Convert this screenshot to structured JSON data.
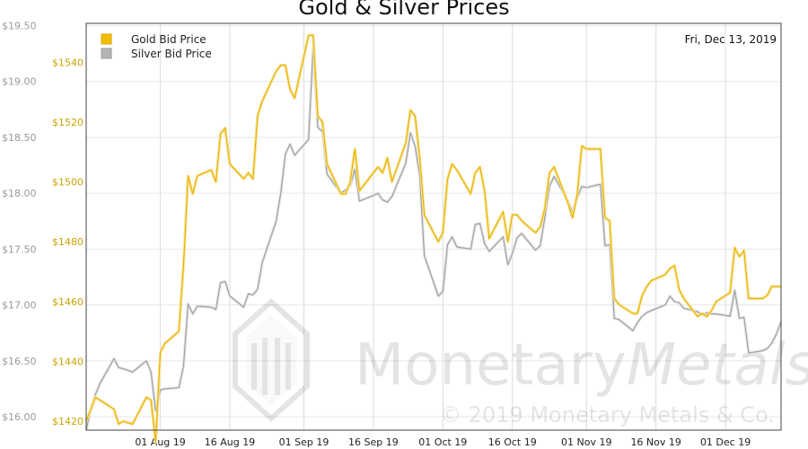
{
  "chart_data": {
    "type": "line",
    "title": "Gold & Silver Prices",
    "date_label": "Fri, Dec 13, 2019",
    "legend_position": "top-left",
    "grid": true,
    "colors": {
      "gold": "#f2bc00",
      "silver": "#b5b5b5"
    },
    "x_ticks": [
      "01 Aug 19",
      "16 Aug 19",
      "01 Sep 19",
      "16 Sep 19",
      "01 Oct 19",
      "16 Oct 19",
      "01 Nov 19",
      "16 Nov 19",
      "01 Dec 19"
    ],
    "y_left": {
      "ticks": [
        "$16.00",
        "$16.50",
        "$17.00",
        "$17.50",
        "$18.00",
        "$18.50",
        "$19.00",
        "$19.50"
      ],
      "range": [
        15.88,
        19.52
      ]
    },
    "y_right": {
      "ticks": [
        "$1420",
        "$1440",
        "$1460",
        "$1480",
        "$1500",
        "$1520",
        "$1540"
      ],
      "range": [
        1417,
        1553
      ]
    },
    "x_range": [
      "2019-07-16",
      "2019-12-13"
    ],
    "series": [
      {
        "name": "Gold Bid Price",
        "axis": "right",
        "points": [
          [
            "2019-07-16",
            1420
          ],
          [
            "2019-07-17",
            1424
          ],
          [
            "2019-07-18",
            1428
          ],
          [
            "2019-07-19",
            1427
          ],
          [
            "2019-07-22",
            1424
          ],
          [
            "2019-07-23",
            1419
          ],
          [
            "2019-07-24",
            1420
          ],
          [
            "2019-07-26",
            1419
          ],
          [
            "2019-07-29",
            1428
          ],
          [
            "2019-07-30",
            1427
          ],
          [
            "2019-07-31",
            1413
          ],
          [
            "2019-08-01",
            1443
          ],
          [
            "2019-08-02",
            1446
          ],
          [
            "2019-08-05",
            1450
          ],
          [
            "2019-08-06",
            1472
          ],
          [
            "2019-08-07",
            1502
          ],
          [
            "2019-08-08",
            1496
          ],
          [
            "2019-08-09",
            1502
          ],
          [
            "2019-08-12",
            1504
          ],
          [
            "2019-08-13",
            1500
          ],
          [
            "2019-08-14",
            1516
          ],
          [
            "2019-08-15",
            1518
          ],
          [
            "2019-08-16",
            1506
          ],
          [
            "2019-08-19",
            1501
          ],
          [
            "2019-08-20",
            1503
          ],
          [
            "2019-08-21",
            1501
          ],
          [
            "2019-08-22",
            1522
          ],
          [
            "2019-08-23",
            1527
          ],
          [
            "2019-08-26",
            1537
          ],
          [
            "2019-08-27",
            1539
          ],
          [
            "2019-08-28",
            1539
          ],
          [
            "2019-08-29",
            1531
          ],
          [
            "2019-08-30",
            1528
          ],
          [
            "2019-09-02",
            1549
          ],
          [
            "2019-09-03",
            1549
          ],
          [
            "2019-09-04",
            1522
          ],
          [
            "2019-09-05",
            1520
          ],
          [
            "2019-09-06",
            1506
          ],
          [
            "2019-09-09",
            1496
          ],
          [
            "2019-09-10",
            1496
          ],
          [
            "2019-09-11",
            1500
          ],
          [
            "2019-09-12",
            1511
          ],
          [
            "2019-09-13",
            1497
          ],
          [
            "2019-09-16",
            1503
          ],
          [
            "2019-09-17",
            1505
          ],
          [
            "2019-09-18",
            1503
          ],
          [
            "2019-09-19",
            1508
          ],
          [
            "2019-09-20",
            1500
          ],
          [
            "2019-09-23",
            1513
          ],
          [
            "2019-09-24",
            1524
          ],
          [
            "2019-09-25",
            1522
          ],
          [
            "2019-09-26",
            1508
          ],
          [
            "2019-09-27",
            1489
          ],
          [
            "2019-09-30",
            1480
          ],
          [
            "2019-10-01",
            1483
          ],
          [
            "2019-10-02",
            1501
          ],
          [
            "2019-10-03",
            1506
          ],
          [
            "2019-10-04",
            1504
          ],
          [
            "2019-10-07",
            1496
          ],
          [
            "2019-10-08",
            1503
          ],
          [
            "2019-10-09",
            1505
          ],
          [
            "2019-10-10",
            1497
          ],
          [
            "2019-10-11",
            1481
          ],
          [
            "2019-10-14",
            1490
          ],
          [
            "2019-10-15",
            1480
          ],
          [
            "2019-10-16",
            1489
          ],
          [
            "2019-10-17",
            1489
          ],
          [
            "2019-10-18",
            1487
          ],
          [
            "2019-10-21",
            1483
          ],
          [
            "2019-10-22",
            1485
          ],
          [
            "2019-10-23",
            1491
          ],
          [
            "2019-10-24",
            1503
          ],
          [
            "2019-10-25",
            1505
          ],
          [
            "2019-10-28",
            1493
          ],
          [
            "2019-10-29",
            1488
          ],
          [
            "2019-10-30",
            1496
          ],
          [
            "2019-10-31",
            1512
          ],
          [
            "2019-11-01",
            1511
          ],
          [
            "2019-11-04",
            1511
          ],
          [
            "2019-11-05",
            1488
          ],
          [
            "2019-11-06",
            1487
          ],
          [
            "2019-11-07",
            1461
          ],
          [
            "2019-11-08",
            1459
          ],
          [
            "2019-11-11",
            1456
          ],
          [
            "2019-11-12",
            1456
          ],
          [
            "2019-11-13",
            1462
          ],
          [
            "2019-11-14",
            1465
          ],
          [
            "2019-11-15",
            1467
          ],
          [
            "2019-11-18",
            1469
          ],
          [
            "2019-11-19",
            1471
          ],
          [
            "2019-11-20",
            1472
          ],
          [
            "2019-11-21",
            1464
          ],
          [
            "2019-11-22",
            1461
          ],
          [
            "2019-11-25",
            1455
          ],
          [
            "2019-11-26",
            1456
          ],
          [
            "2019-11-27",
            1455
          ],
          [
            "2019-11-28",
            1457
          ],
          [
            "2019-11-29",
            1460
          ],
          [
            "2019-12-02",
            1463
          ],
          [
            "2019-12-03",
            1478
          ],
          [
            "2019-12-04",
            1475
          ],
          [
            "2019-12-05",
            1477
          ],
          [
            "2019-12-06",
            1461
          ],
          [
            "2019-12-09",
            1461
          ],
          [
            "2019-12-10",
            1462
          ],
          [
            "2019-12-11",
            1465
          ],
          [
            "2019-12-12",
            1465
          ],
          [
            "2019-12-13",
            1465
          ]
        ]
      },
      {
        "name": "Silver Bid Price",
        "axis": "left",
        "points": [
          [
            "2019-07-16",
            15.88
          ],
          [
            "2019-07-17",
            16.07
          ],
          [
            "2019-07-18",
            16.2
          ],
          [
            "2019-07-19",
            16.3
          ],
          [
            "2019-07-22",
            16.52
          ],
          [
            "2019-07-23",
            16.44
          ],
          [
            "2019-07-24",
            16.43
          ],
          [
            "2019-07-26",
            16.4
          ],
          [
            "2019-07-29",
            16.5
          ],
          [
            "2019-07-30",
            16.4
          ],
          [
            "2019-07-31",
            16.05
          ],
          [
            "2019-08-01",
            16.24
          ],
          [
            "2019-08-02",
            16.25
          ],
          [
            "2019-08-05",
            16.26
          ],
          [
            "2019-08-06",
            16.45
          ],
          [
            "2019-08-07",
            17.01
          ],
          [
            "2019-08-08",
            16.92
          ],
          [
            "2019-08-09",
            16.99
          ],
          [
            "2019-08-12",
            16.98
          ],
          [
            "2019-08-13",
            16.96
          ],
          [
            "2019-08-14",
            17.2
          ],
          [
            "2019-08-15",
            17.21
          ],
          [
            "2019-08-16",
            17.08
          ],
          [
            "2019-08-19",
            16.98
          ],
          [
            "2019-08-20",
            17.1
          ],
          [
            "2019-08-21",
            17.09
          ],
          [
            "2019-08-22",
            17.14
          ],
          [
            "2019-08-23",
            17.38
          ],
          [
            "2019-08-26",
            17.75
          ],
          [
            "2019-08-27",
            18.0
          ],
          [
            "2019-08-28",
            18.35
          ],
          [
            "2019-08-29",
            18.44
          ],
          [
            "2019-08-30",
            18.34
          ],
          [
            "2019-09-02",
            18.48
          ],
          [
            "2019-09-03",
            19.3
          ],
          [
            "2019-09-04",
            18.59
          ],
          [
            "2019-09-05",
            18.55
          ],
          [
            "2019-09-06",
            18.17
          ],
          [
            "2019-09-09",
            18.0
          ],
          [
            "2019-09-10",
            18.03
          ],
          [
            "2019-09-11",
            18.07
          ],
          [
            "2019-09-12",
            18.21
          ],
          [
            "2019-09-13",
            17.93
          ],
          [
            "2019-09-16",
            17.98
          ],
          [
            "2019-09-17",
            18.0
          ],
          [
            "2019-09-18",
            17.94
          ],
          [
            "2019-09-19",
            17.92
          ],
          [
            "2019-09-20",
            17.97
          ],
          [
            "2019-09-23",
            18.27
          ],
          [
            "2019-09-24",
            18.54
          ],
          [
            "2019-09-25",
            18.42
          ],
          [
            "2019-09-26",
            18.16
          ],
          [
            "2019-09-27",
            17.44
          ],
          [
            "2019-09-30",
            17.08
          ],
          [
            "2019-10-01",
            17.12
          ],
          [
            "2019-10-02",
            17.54
          ],
          [
            "2019-10-03",
            17.61
          ],
          [
            "2019-10-04",
            17.52
          ],
          [
            "2019-10-07",
            17.5
          ],
          [
            "2019-10-08",
            17.72
          ],
          [
            "2019-10-09",
            17.73
          ],
          [
            "2019-10-10",
            17.55
          ],
          [
            "2019-10-11",
            17.48
          ],
          [
            "2019-10-14",
            17.61
          ],
          [
            "2019-10-15",
            17.36
          ],
          [
            "2019-10-16",
            17.46
          ],
          [
            "2019-10-17",
            17.6
          ],
          [
            "2019-10-18",
            17.64
          ],
          [
            "2019-10-21",
            17.49
          ],
          [
            "2019-10-22",
            17.53
          ],
          [
            "2019-10-23",
            17.78
          ],
          [
            "2019-10-24",
            18.06
          ],
          [
            "2019-10-25",
            18.15
          ],
          [
            "2019-10-28",
            17.93
          ],
          [
            "2019-10-29",
            17.83
          ],
          [
            "2019-10-30",
            17.96
          ],
          [
            "2019-10-31",
            18.06
          ],
          [
            "2019-11-01",
            18.05
          ],
          [
            "2019-11-04",
            18.08
          ],
          [
            "2019-11-05",
            17.53
          ],
          [
            "2019-11-06",
            17.54
          ],
          [
            "2019-11-07",
            16.88
          ],
          [
            "2019-11-08",
            16.87
          ],
          [
            "2019-11-11",
            16.77
          ],
          [
            "2019-11-12",
            16.84
          ],
          [
            "2019-11-13",
            16.9
          ],
          [
            "2019-11-14",
            16.93
          ],
          [
            "2019-11-15",
            16.95
          ],
          [
            "2019-11-18",
            17.0
          ],
          [
            "2019-11-19",
            17.08
          ],
          [
            "2019-11-20",
            17.03
          ],
          [
            "2019-11-21",
            17.02
          ],
          [
            "2019-11-22",
            16.97
          ],
          [
            "2019-11-25",
            16.94
          ],
          [
            "2019-11-26",
            16.91
          ],
          [
            "2019-11-27",
            16.93
          ],
          [
            "2019-11-28",
            16.92
          ],
          [
            "2019-11-29",
            16.92
          ],
          [
            "2019-12-02",
            16.9
          ],
          [
            "2019-12-03",
            17.13
          ],
          [
            "2019-12-04",
            16.88
          ],
          [
            "2019-12-05",
            16.89
          ],
          [
            "2019-12-06",
            16.57
          ],
          [
            "2019-12-09",
            16.59
          ],
          [
            "2019-12-10",
            16.61
          ],
          [
            "2019-12-11",
            16.66
          ],
          [
            "2019-12-12",
            16.74
          ],
          [
            "2019-12-13",
            16.85
          ]
        ]
      }
    ]
  },
  "watermark": {
    "brand_primary": "Monetary",
    "brand_secondary": "Metals",
    "registered_mark": "®",
    "copyright": "© 2019 Monetary Metals & Co."
  }
}
